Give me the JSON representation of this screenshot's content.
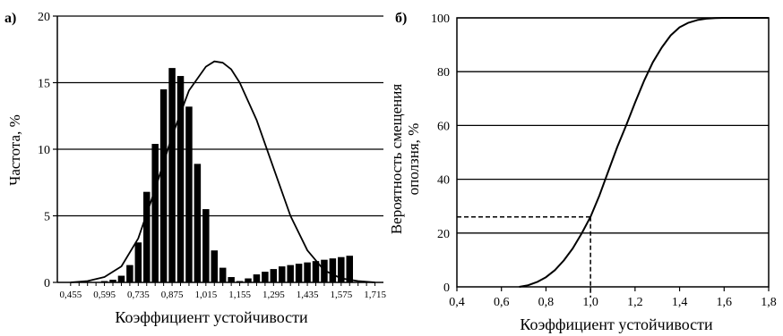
{
  "chart_data": [
    {
      "type": "bar",
      "panel_label": "а)",
      "title": "",
      "xlabel": "Коэффициент устойчивости",
      "ylabel": "Частота, %",
      "ylim": [
        0,
        20
      ],
      "yticks": [
        0,
        5,
        10,
        15,
        20
      ],
      "grid": "horizontal",
      "x_tick_labels": [
        "0,455",
        "0,595",
        "0,735",
        "0,875",
        "1,015",
        "1,155",
        "1,295",
        "1,435",
        "1,575",
        "1,715"
      ],
      "bars": {
        "x": [
          0.595,
          0.63,
          0.665,
          0.7,
          0.735,
          0.77,
          0.805,
          0.84,
          0.875,
          0.91,
          0.945,
          0.98,
          1.015,
          1.05,
          1.085,
          1.12,
          1.155,
          1.19,
          1.225,
          1.26,
          1.295,
          1.33,
          1.365,
          1.4,
          1.435,
          1.47,
          1.505,
          1.54,
          1.575,
          1.61
        ],
        "values": [
          0.1,
          0.2,
          0.5,
          1.3,
          3.0,
          6.8,
          10.4,
          14.5,
          16.1,
          15.5,
          13.2,
          8.9,
          5.5,
          2.4,
          1.1,
          0.4,
          0.1,
          0.3,
          0.6,
          0.8,
          1.0,
          1.2,
          1.3,
          1.4,
          1.5,
          1.6,
          1.7,
          1.8,
          1.9,
          2.0
        ]
      },
      "curve": {
        "x": [
          0.455,
          0.525,
          0.595,
          0.665,
          0.735,
          0.805,
          0.875,
          0.945,
          1.015,
          1.05,
          1.085,
          1.12,
          1.155,
          1.225,
          1.295,
          1.365,
          1.435,
          1.505,
          1.575,
          1.645,
          1.715
        ],
        "y": [
          0.0,
          0.1,
          0.4,
          1.2,
          3.3,
          7.0,
          11.0,
          14.4,
          16.2,
          16.6,
          16.5,
          16.0,
          15.0,
          12.2,
          8.6,
          5.0,
          2.4,
          0.9,
          0.3,
          0.1,
          0.0
        ]
      }
    },
    {
      "type": "line",
      "panel_label": "б)",
      "title": "",
      "xlabel": "Коэффициент устойчивости",
      "ylabel_line1": "Вероятность смещения",
      "ylabel_line2": "оползня, %",
      "xlim": [
        0.4,
        1.8
      ],
      "ylim": [
        0,
        100
      ],
      "xticks": [
        "0,4",
        "0,6",
        "0,8",
        "1,0",
        "1,2",
        "1,4",
        "1,6",
        "1,8"
      ],
      "yticks": [
        "0",
        "20",
        "40",
        "60",
        "80",
        "100"
      ],
      "grid": "horizontal",
      "series": [
        {
          "x": [
            0.68,
            0.72,
            0.76,
            0.8,
            0.84,
            0.88,
            0.92,
            0.96,
            1.0,
            1.04,
            1.08,
            1.12,
            1.16,
            1.2,
            1.24,
            1.28,
            1.32,
            1.36,
            1.4,
            1.44,
            1.48,
            1.52,
            1.56,
            1.6,
            1.64,
            1.7,
            1.8
          ],
          "y": [
            0.0,
            0.6,
            1.8,
            3.6,
            6.2,
            9.8,
            14.3,
            19.8,
            26.0,
            34.0,
            43.0,
            52.0,
            60.0,
            68.5,
            76.5,
            83.5,
            89.0,
            93.5,
            96.5,
            98.2,
            99.2,
            99.7,
            99.9,
            100.0,
            100.0,
            100.0,
            100.0
          ]
        }
      ],
      "annotation": {
        "x": 1.0,
        "y": 26,
        "style": "dashed"
      }
    }
  ]
}
